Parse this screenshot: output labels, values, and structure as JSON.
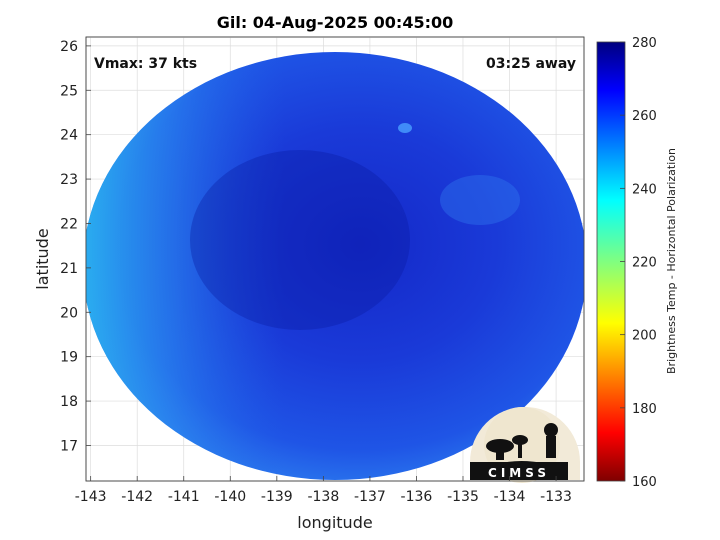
{
  "title": "Gil: 04-Aug-2025 00:45:00",
  "vmax_label": "Vmax: 37 kts",
  "time_label": "03:25 away",
  "xlabel": "longitude",
  "ylabel": "latitude",
  "x_ticks": [
    "-143",
    "-142",
    "-141",
    "-140",
    "-139",
    "-138",
    "-137",
    "-136",
    "-135",
    "-134",
    "-133"
  ],
  "y_ticks": [
    "26",
    "25",
    "24",
    "23",
    "22",
    "21",
    "20",
    "19",
    "18",
    "17"
  ],
  "colorbar": {
    "label": "Brightness Temp - Horizontal Polarization",
    "ticks": [
      "280",
      "260",
      "240",
      "220",
      "200",
      "180",
      "160"
    ]
  },
  "logo_text": "CIMSS",
  "map_data": {
    "lon_range": [
      -143.1,
      -132.4
    ],
    "lat_range": [
      16.2,
      26.2
    ],
    "cmin": 160,
    "cmax": 280,
    "colormap": "jet",
    "swath_center": [
      -137.6,
      21.2
    ],
    "swath_radius_deg_lon": 5.7,
    "swath_radius_deg_lat": 4.3,
    "fill_value": 262,
    "edge_value": 245,
    "grid": true
  }
}
